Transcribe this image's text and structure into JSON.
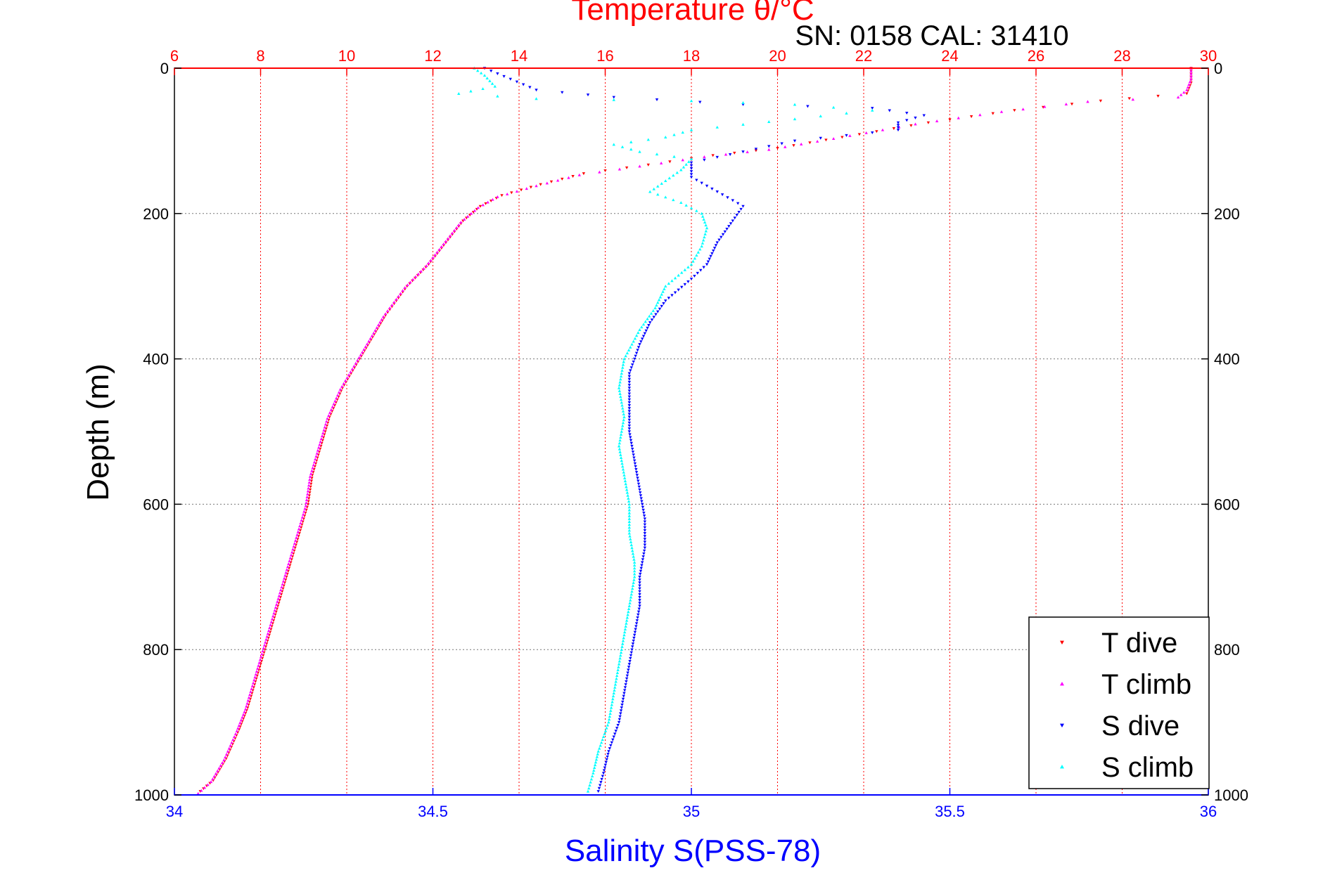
{
  "chart_data": {
    "type": "scatter",
    "title": "Temperature θ/°C",
    "subtitle": "SN: 0158  CAL: 31410",
    "ylabel": "Depth (m)",
    "xlabel_bottom": "Salinity S(PSS-78)",
    "xlabel_top": "Temperature θ/°C",
    "y_axis": {
      "range": [
        0,
        1000
      ],
      "reversed": true,
      "ticks": [
        0,
        200,
        400,
        600,
        800,
        1000
      ],
      "tick_labels": [
        "0",
        "200",
        "400",
        "600",
        "800",
        "1000"
      ]
    },
    "x_bottom_axis": {
      "range": [
        34,
        36
      ],
      "ticks": [
        34,
        34.5,
        35,
        35.5,
        36
      ],
      "tick_labels": [
        "34",
        "34.5",
        "35",
        "35.5",
        "36"
      ],
      "color": "#0000ff"
    },
    "x_top_axis": {
      "range": [
        6,
        30
      ],
      "ticks": [
        6,
        8,
        10,
        12,
        14,
        16,
        18,
        20,
        22,
        24,
        26,
        28,
        30
      ],
      "tick_labels": [
        "6",
        "8",
        "10",
        "12",
        "14",
        "16",
        "18",
        "20",
        "22",
        "24",
        "26",
        "28",
        "30"
      ],
      "color": "#ff0000"
    },
    "grid": true,
    "legend": {
      "placement": "bottom-right",
      "entries": [
        "T dive",
        "T climb",
        "S dive",
        "S climb"
      ]
    },
    "series": [
      {
        "name": "T dive",
        "axis": "top",
        "color": "#ff0000",
        "marker": "triangle-down",
        "points": [
          [
            29.6,
            0
          ],
          [
            29.6,
            20
          ],
          [
            29.5,
            35
          ],
          [
            27.5,
            45
          ],
          [
            25.5,
            58
          ],
          [
            23.5,
            75
          ],
          [
            21.5,
            95
          ],
          [
            20,
            110
          ],
          [
            18.5,
            120
          ],
          [
            17,
            133
          ],
          [
            15.5,
            145
          ],
          [
            14.5,
            160
          ],
          [
            13.6,
            175
          ],
          [
            13.1,
            190
          ],
          [
            12.7,
            210
          ],
          [
            12.3,
            240
          ],
          [
            11.9,
            270
          ],
          [
            11.4,
            300
          ],
          [
            10.9,
            340
          ],
          [
            10.6,
            370
          ],
          [
            10.3,
            400
          ],
          [
            9.9,
            440
          ],
          [
            9.6,
            480
          ],
          [
            9.4,
            520
          ],
          [
            9.2,
            560
          ],
          [
            9.1,
            600
          ],
          [
            8.9,
            640
          ],
          [
            8.7,
            680
          ],
          [
            8.5,
            720
          ],
          [
            8.3,
            760
          ],
          [
            8.1,
            800
          ],
          [
            7.9,
            840
          ],
          [
            7.7,
            880
          ],
          [
            7.5,
            910
          ],
          [
            7.2,
            950
          ],
          [
            6.9,
            980
          ],
          [
            6.6,
            995
          ]
        ]
      },
      {
        "name": "T climb",
        "axis": "top",
        "color": "#ff00ff",
        "marker": "triangle-up",
        "points": [
          [
            29.6,
            0
          ],
          [
            29.6,
            15
          ],
          [
            29.5,
            30
          ],
          [
            29.3,
            40
          ],
          [
            27.2,
            46
          ],
          [
            25.2,
            60
          ],
          [
            23.2,
            77
          ],
          [
            21.3,
            97
          ],
          [
            19.8,
            112
          ],
          [
            18.3,
            122
          ],
          [
            16.8,
            135
          ],
          [
            15.4,
            147
          ],
          [
            14.4,
            162
          ],
          [
            13.5,
            177
          ],
          [
            13.05,
            192
          ],
          [
            12.65,
            212
          ],
          [
            12.25,
            242
          ],
          [
            11.85,
            272
          ],
          [
            11.35,
            302
          ],
          [
            10.85,
            342
          ],
          [
            10.55,
            372
          ],
          [
            10.25,
            402
          ],
          [
            9.85,
            442
          ],
          [
            9.55,
            482
          ],
          [
            9.35,
            522
          ],
          [
            9.15,
            562
          ],
          [
            9.05,
            602
          ],
          [
            8.85,
            642
          ],
          [
            8.65,
            682
          ],
          [
            8.45,
            722
          ],
          [
            8.25,
            762
          ],
          [
            8.05,
            802
          ],
          [
            7.85,
            842
          ],
          [
            7.65,
            882
          ],
          [
            7.45,
            912
          ],
          [
            7.15,
            952
          ],
          [
            6.85,
            982
          ],
          [
            6.55,
            998
          ]
        ]
      },
      {
        "name": "S dive",
        "axis": "bottom",
        "color": "#0000ff",
        "marker": "triangle-down",
        "points": [
          [
            34.6,
            0
          ],
          [
            34.65,
            15
          ],
          [
            34.7,
            30
          ],
          [
            34.85,
            40
          ],
          [
            35.1,
            50
          ],
          [
            35.35,
            55
          ],
          [
            35.45,
            65
          ],
          [
            35.4,
            75
          ],
          [
            35.4,
            85
          ],
          [
            35.2,
            100
          ],
          [
            35.1,
            115
          ],
          [
            35.0,
            130
          ],
          [
            35.0,
            150
          ],
          [
            35.05,
            170
          ],
          [
            35.1,
            190
          ],
          [
            35.08,
            210
          ],
          [
            35.05,
            240
          ],
          [
            35.03,
            270
          ],
          [
            35.0,
            290
          ],
          [
            34.95,
            320
          ],
          [
            34.92,
            350
          ],
          [
            34.9,
            380
          ],
          [
            34.88,
            420
          ],
          [
            34.88,
            460
          ],
          [
            34.88,
            500
          ],
          [
            34.89,
            540
          ],
          [
            34.9,
            580
          ],
          [
            34.91,
            620
          ],
          [
            34.91,
            660
          ],
          [
            34.9,
            700
          ],
          [
            34.9,
            740
          ],
          [
            34.89,
            780
          ],
          [
            34.88,
            820
          ],
          [
            34.87,
            860
          ],
          [
            34.86,
            900
          ],
          [
            34.84,
            940
          ],
          [
            34.83,
            970
          ],
          [
            34.82,
            995
          ]
        ]
      },
      {
        "name": "S climb",
        "axis": "bottom",
        "color": "#00ffff",
        "marker": "triangle-up",
        "points": [
          [
            34.58,
            0
          ],
          [
            34.6,
            10
          ],
          [
            34.62,
            25
          ],
          [
            34.55,
            35
          ],
          [
            34.7,
            42
          ],
          [
            35.0,
            45
          ],
          [
            35.2,
            50
          ],
          [
            35.35,
            58
          ],
          [
            35.2,
            70
          ],
          [
            35.0,
            85
          ],
          [
            34.95,
            95
          ],
          [
            34.85,
            105
          ],
          [
            34.9,
            115
          ],
          [
            35.0,
            125
          ],
          [
            34.98,
            140
          ],
          [
            34.95,
            155
          ],
          [
            34.92,
            170
          ],
          [
            34.98,
            185
          ],
          [
            35.02,
            200
          ],
          [
            35.03,
            220
          ],
          [
            35.02,
            245
          ],
          [
            35.0,
            270
          ],
          [
            34.95,
            300
          ],
          [
            34.93,
            330
          ],
          [
            34.9,
            360
          ],
          [
            34.87,
            400
          ],
          [
            34.86,
            440
          ],
          [
            34.87,
            480
          ],
          [
            34.86,
            520
          ],
          [
            34.87,
            560
          ],
          [
            34.88,
            600
          ],
          [
            34.88,
            640
          ],
          [
            34.89,
            680
          ],
          [
            34.89,
            700
          ],
          [
            34.88,
            740
          ],
          [
            34.87,
            780
          ],
          [
            34.86,
            820
          ],
          [
            34.85,
            860
          ],
          [
            34.84,
            900
          ],
          [
            34.82,
            940
          ],
          [
            34.81,
            970
          ],
          [
            34.8,
            995
          ]
        ]
      }
    ]
  }
}
